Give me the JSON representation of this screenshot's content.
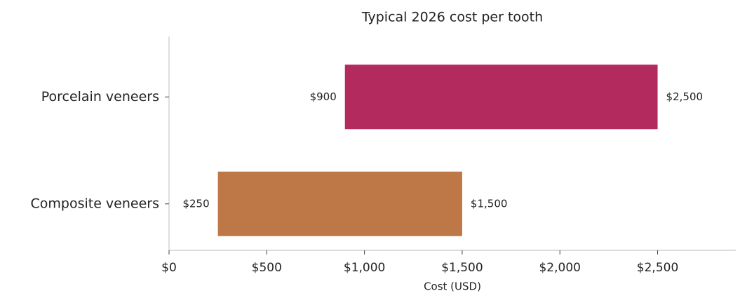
{
  "chart_data": {
    "type": "floating-bar",
    "orientation": "horizontal",
    "title": "Typical 2026 cost per tooth",
    "x_label": "Cost (USD)",
    "categories": [
      "Porcelain veneers",
      "Composite veneers"
    ],
    "low": [
      900,
      250
    ],
    "low_labels": [
      "$900",
      "$250"
    ],
    "high": [
      2500,
      1500
    ],
    "high_labels": [
      "$2,500",
      "$1,500"
    ],
    "colors": [
      "#b32a5e",
      "#be7746"
    ],
    "xlim": [
      0,
      2900
    ],
    "xticks": [
      {
        "value": 0,
        "label": "$0"
      },
      {
        "value": 500,
        "label": "$500"
      },
      {
        "value": 1000,
        "label": "$1,000"
      },
      {
        "value": 1500,
        "label": "$1,500"
      },
      {
        "value": 2000,
        "label": "$2,000"
      },
      {
        "value": 2500,
        "label": "$2,500"
      }
    ],
    "grid": false
  }
}
